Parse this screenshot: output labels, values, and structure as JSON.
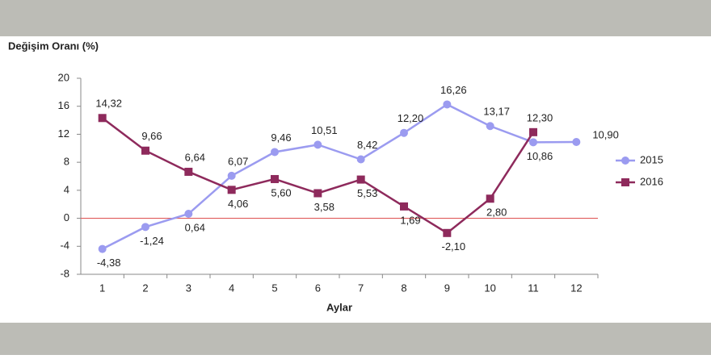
{
  "chart_data": {
    "type": "line",
    "title": "Değişim Oranı (%)",
    "x_label": "Aylar",
    "categories": [
      "1",
      "2",
      "3",
      "4",
      "5",
      "6",
      "7",
      "8",
      "9",
      "10",
      "11",
      "12"
    ],
    "series": [
      {
        "name": "2015",
        "color": "#9b9bf0",
        "marker": "circle",
        "values": [
          -4.38,
          -1.24,
          0.64,
          6.07,
          9.46,
          10.51,
          8.42,
          12.2,
          16.26,
          13.17,
          10.86,
          10.9
        ],
        "value_labels": [
          "-4,38",
          "-1,24",
          "0,64",
          "6,07",
          "9,46",
          "10,51",
          "8,42",
          "12,20",
          "16,26",
          "13,17",
          "10,86",
          "10,90"
        ]
      },
      {
        "name": "2016",
        "color": "#8e2a5c",
        "marker": "square",
        "values": [
          14.32,
          9.66,
          6.64,
          4.06,
          5.6,
          3.58,
          5.53,
          1.69,
          -2.1,
          2.8,
          12.3,
          null
        ],
        "value_labels": [
          "14,32",
          "9,66",
          "6,64",
          "4,06",
          "5,60",
          "3,58",
          "5,53",
          "1,69",
          "-2,10",
          "2,80",
          "12,30",
          null
        ]
      }
    ],
    "ylim": [
      -8,
      20
    ],
    "yticks": [
      -8,
      -4,
      0,
      4,
      8,
      12,
      16,
      20
    ],
    "hline": 0,
    "hline_color": "#e05a5a",
    "legend": "right"
  }
}
